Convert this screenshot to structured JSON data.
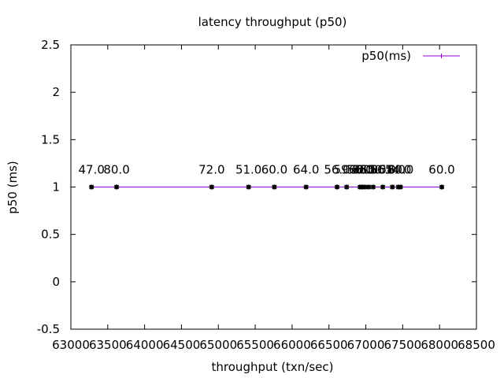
{
  "chart_data": {
    "type": "line",
    "title": "latency throughput (p50)",
    "xlabel": "throughput (txn/sec)",
    "ylabel": "p50 (ms)",
    "xlim": [
      63000,
      68500
    ],
    "ylim": [
      -0.5,
      2.5
    ],
    "xticks": [
      "63000",
      "63500",
      "64000",
      "64500",
      "65000",
      "65500",
      "66000",
      "66500",
      "67000",
      "67500",
      "68000",
      "68500"
    ],
    "yticks": [
      "-0.5",
      "0",
      "0.5",
      "1",
      "1.5",
      "2",
      "2.5"
    ],
    "grid": false,
    "legend_position": "top-right",
    "series": [
      {
        "name": "p50(ms)",
        "color": "#9400d3",
        "marker_color": "#000000",
        "x": [
          63280,
          63620,
          64910,
          65410,
          65760,
          66190,
          66610,
          66740,
          66920,
          66950,
          66990,
          67040,
          67100,
          67230,
          67360,
          67440,
          67470,
          68030
        ],
        "y": [
          1,
          1,
          1,
          1,
          1,
          1,
          1,
          1,
          1,
          1,
          1,
          1,
          1,
          1,
          1,
          1,
          1,
          1
        ],
        "point_labels": [
          "47.0",
          "80.0",
          "72.0",
          "51.0",
          "60.0",
          "64.0",
          "56.0",
          "59.0",
          "56.0",
          "60.0",
          "58.0",
          "60.0",
          "55.0",
          "56.0",
          "58.0",
          "54.0",
          "60.0",
          "60.0"
        ]
      }
    ]
  }
}
